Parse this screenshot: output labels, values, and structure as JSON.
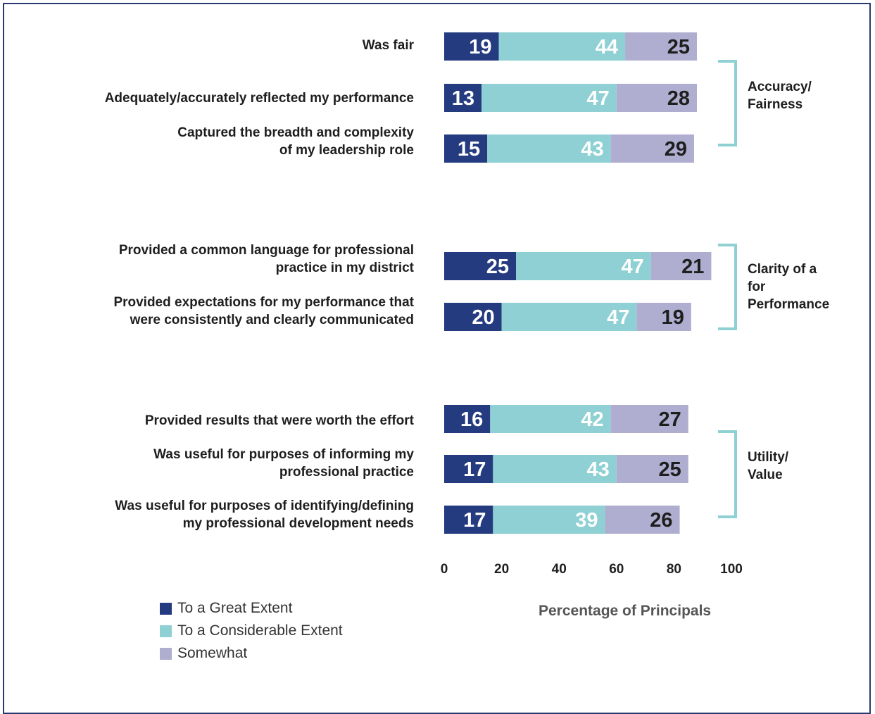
{
  "chart_data": {
    "type": "bar",
    "stacked": true,
    "orientation": "horizontal",
    "categories": [
      "Was fair",
      "Adequately/accurately reflected my performance",
      "Captured the breadth and complexity\nof my leadership role",
      "Provided a common language for professional\npractice in my district",
      "Provided expectations for my performance that\nwere consistently and clearly communicated",
      "Provided results that were worth the effort",
      "Was useful for purposes of informing my\nprofessional practice",
      "Was useful for purposes of identifying/defining\nmy professional development needs"
    ],
    "series": [
      {
        "name": "To a Great Extent",
        "color": "#253b80",
        "values": [
          19,
          13,
          15,
          25,
          20,
          16,
          17,
          17
        ]
      },
      {
        "name": "To a Considerable Extent",
        "color": "#8ed0d3",
        "values": [
          44,
          47,
          43,
          47,
          47,
          42,
          43,
          39
        ]
      },
      {
        "name": "Somewhat",
        "color": "#b0aed0",
        "values": [
          25,
          28,
          29,
          21,
          19,
          27,
          25,
          26
        ]
      }
    ],
    "groups": [
      {
        "label": "Accuracy/\nFairness",
        "categories": [
          0,
          1,
          2
        ]
      },
      {
        "label": "Clarity of a\nfor\nPerformance",
        "categories": [
          3,
          4
        ]
      },
      {
        "label": "Utility/\nValue",
        "categories": [
          5,
          6,
          7
        ]
      }
    ],
    "xlabel": "Percentage of Principals",
    "xlim": [
      0,
      100
    ],
    "xticks": [
      0,
      20,
      40,
      60,
      80,
      100
    ],
    "legend_position": "bottom-left",
    "bracket_color": "#8ed0d3"
  }
}
